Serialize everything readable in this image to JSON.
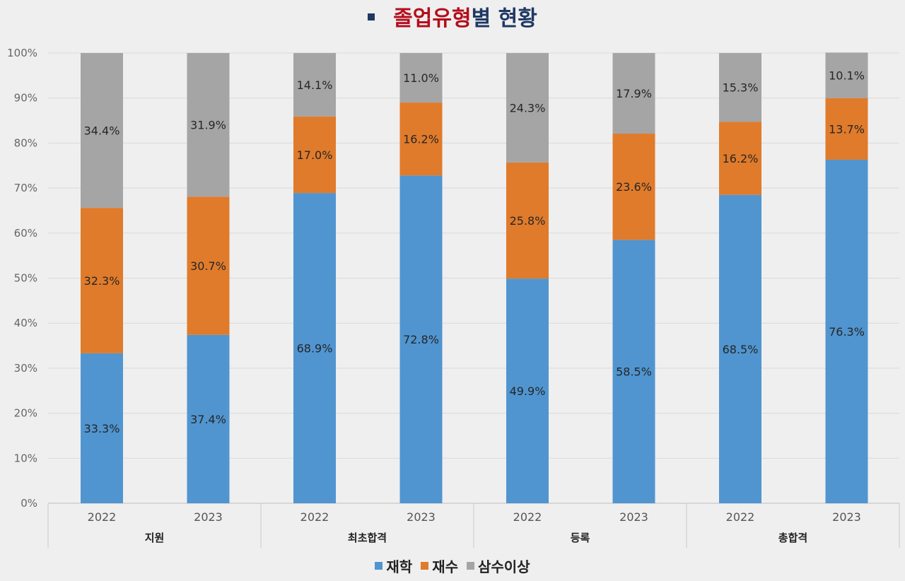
{
  "page_title": {
    "accent_text": "졸업유형",
    "rest_text": "별 현황",
    "accent_color": "#b40e1c",
    "rest_color": "#1f3864"
  },
  "chart_data": {
    "type": "bar",
    "stacked": true,
    "title": "졸업유형별 현황",
    "ylim": [
      0,
      100
    ],
    "y_ticks": [
      "0%",
      "10%",
      "20%",
      "30%",
      "40%",
      "50%",
      "60%",
      "70%",
      "80%",
      "90%",
      "100%"
    ],
    "grid": true,
    "legend_position": "bottom",
    "groups": [
      {
        "label": "지원",
        "years": [
          "2022",
          "2023"
        ]
      },
      {
        "label": "최초합격",
        "years": [
          "2022",
          "2023"
        ]
      },
      {
        "label": "등록",
        "years": [
          "2022",
          "2023"
        ]
      },
      {
        "label": "총합격",
        "years": [
          "2022",
          "2023"
        ]
      }
    ],
    "categories": [
      "지원 2022",
      "지원 2023",
      "최초합격 2022",
      "최초합격 2023",
      "등록 2022",
      "등록 2023",
      "총합격 2022",
      "총합격 2023"
    ],
    "series": [
      {
        "name": "재학",
        "color": "#5095d0",
        "values": [
          33.3,
          37.4,
          68.9,
          72.8,
          49.9,
          58.5,
          68.5,
          76.3
        ],
        "labels": [
          "33.3%",
          "37.4%",
          "68.9%",
          "72.8%",
          "49.9%",
          "58.5%",
          "68.5%",
          "76.3%"
        ]
      },
      {
        "name": "재수",
        "color": "#e07b2b",
        "values": [
          32.3,
          30.7,
          17.0,
          16.2,
          25.8,
          23.6,
          16.2,
          13.7
        ],
        "labels": [
          "32.3%",
          "30.7%",
          "17.0%",
          "16.2%",
          "25.8%",
          "23.6%",
          "16.2%",
          "13.7%"
        ]
      },
      {
        "name": "삼수이상",
        "color": "#a5a5a5",
        "values": [
          34.4,
          31.9,
          14.1,
          11.0,
          24.3,
          17.9,
          15.3,
          10.1
        ],
        "labels": [
          "34.4%",
          "31.9%",
          "14.1%",
          "11.0%",
          "24.3%",
          "17.9%",
          "15.3%",
          "10.1%"
        ]
      }
    ]
  }
}
